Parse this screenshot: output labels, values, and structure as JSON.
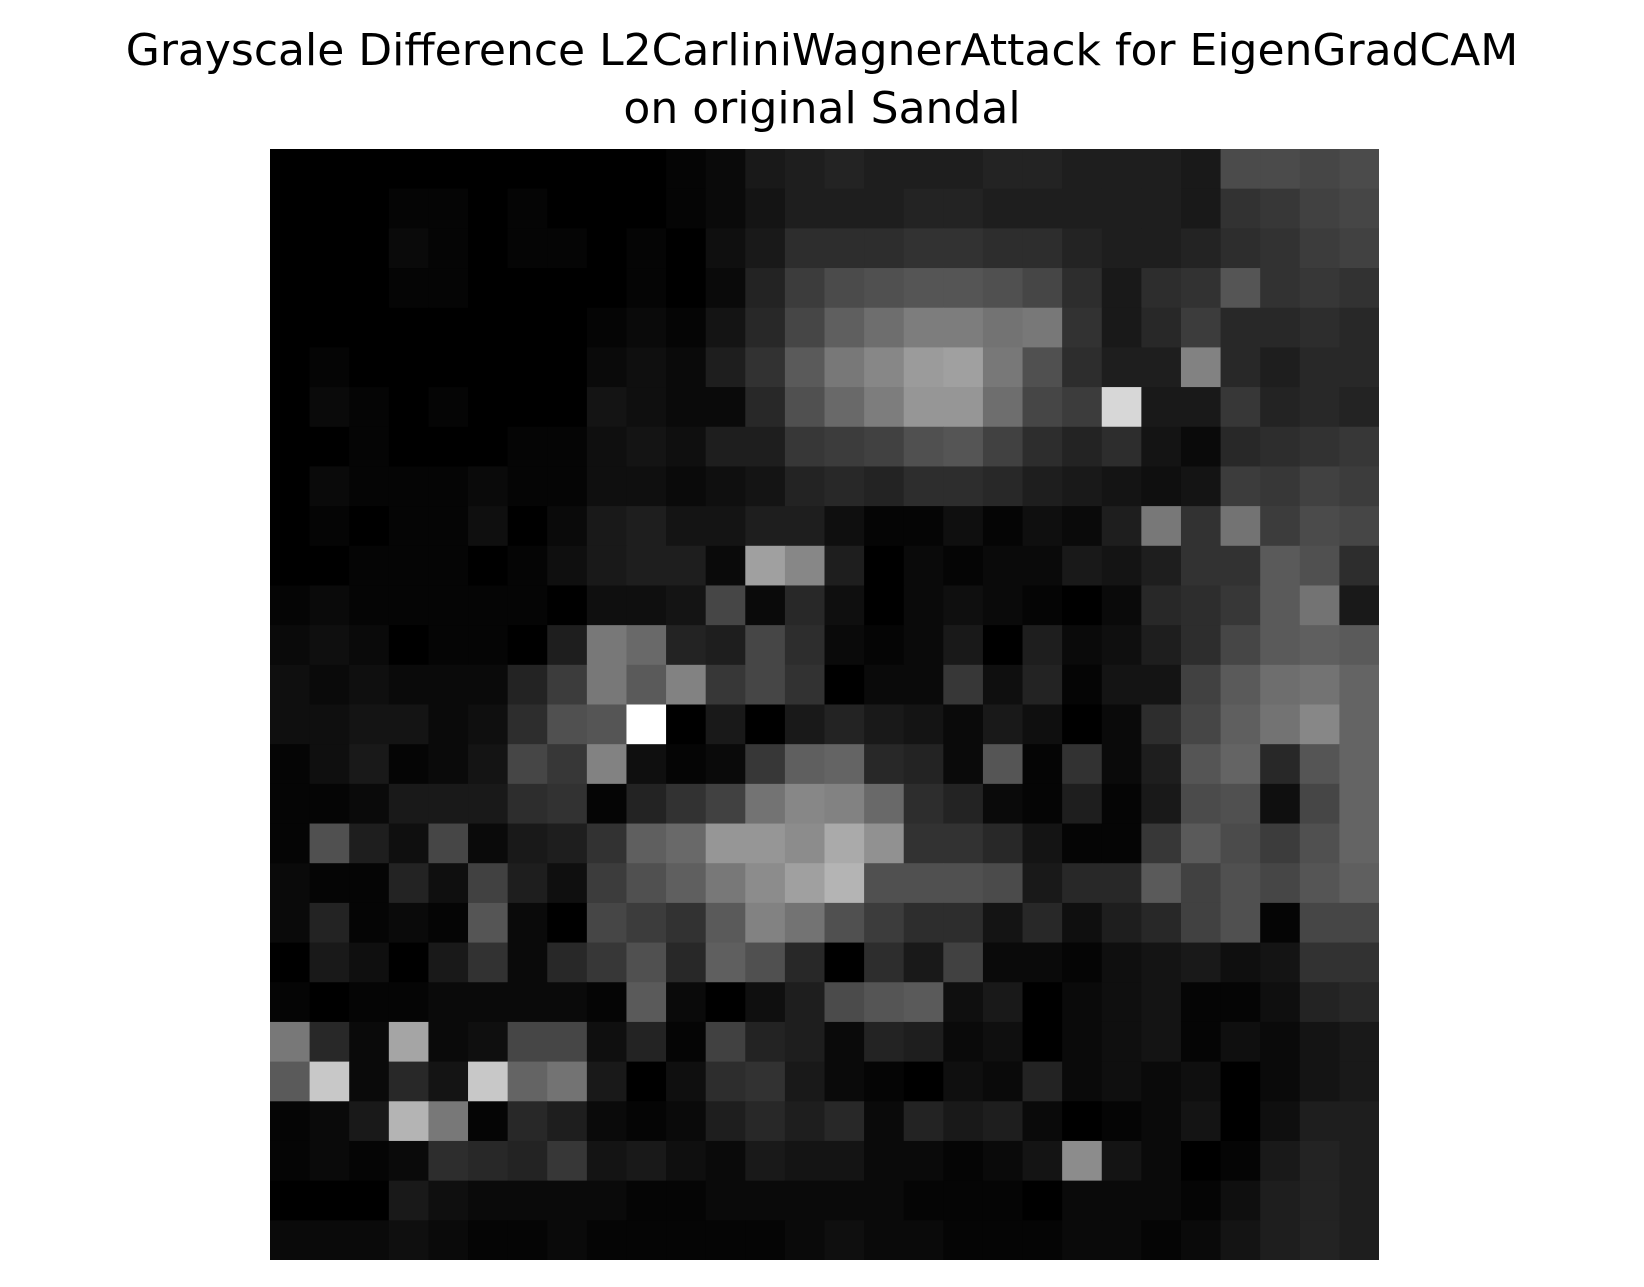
{
  "chart_data": {
    "type": "heatmap",
    "title": "Grayscale Difference L2CarliniWagnerAttack for EigenGradCAM",
    "subtitle": "on original Sandal",
    "colormap": "gray",
    "axes_visible": false,
    "rows": 28,
    "cols": 28,
    "values": [
      [
        0,
        0,
        0,
        0,
        0,
        0,
        0,
        0,
        0,
        0,
        5,
        10,
        25,
        30,
        35,
        30,
        30,
        30,
        35,
        35,
        30,
        30,
        30,
        25,
        75,
        75,
        70,
        75
      ],
      [
        0,
        0,
        0,
        5,
        5,
        0,
        5,
        0,
        0,
        0,
        5,
        10,
        20,
        30,
        30,
        30,
        35,
        35,
        30,
        30,
        30,
        30,
        30,
        25,
        50,
        55,
        65,
        70
      ],
      [
        0,
        0,
        0,
        10,
        5,
        0,
        5,
        5,
        0,
        5,
        0,
        15,
        25,
        45,
        45,
        45,
        50,
        50,
        45,
        45,
        35,
        30,
        30,
        35,
        45,
        50,
        60,
        65
      ],
      [
        0,
        0,
        0,
        5,
        5,
        0,
        0,
        0,
        0,
        5,
        0,
        10,
        35,
        60,
        75,
        80,
        85,
        85,
        80,
        70,
        45,
        25,
        45,
        50,
        85,
        50,
        55,
        50
      ],
      [
        0,
        0,
        0,
        0,
        0,
        0,
        0,
        0,
        5,
        10,
        5,
        20,
        40,
        70,
        95,
        110,
        125,
        125,
        115,
        120,
        50,
        25,
        40,
        60,
        40,
        40,
        45,
        40
      ],
      [
        0,
        5,
        0,
        0,
        0,
        0,
        0,
        0,
        10,
        15,
        10,
        30,
        50,
        90,
        120,
        135,
        155,
        160,
        120,
        80,
        45,
        30,
        30,
        130,
        40,
        30,
        40,
        40
      ],
      [
        0,
        10,
        5,
        0,
        5,
        0,
        0,
        0,
        20,
        15,
        10,
        10,
        40,
        80,
        105,
        125,
        150,
        150,
        110,
        70,
        60,
        215,
        25,
        25,
        55,
        35,
        40,
        35
      ],
      [
        0,
        0,
        5,
        0,
        0,
        0,
        5,
        5,
        15,
        20,
        15,
        30,
        30,
        55,
        60,
        65,
        80,
        85,
        65,
        45,
        35,
        45,
        20,
        10,
        40,
        45,
        50,
        55
      ],
      [
        0,
        10,
        5,
        5,
        5,
        10,
        5,
        5,
        15,
        15,
        10,
        15,
        20,
        35,
        40,
        35,
        45,
        45,
        40,
        30,
        25,
        20,
        15,
        20,
        60,
        55,
        65,
        60
      ],
      [
        0,
        5,
        0,
        5,
        5,
        15,
        0,
        10,
        25,
        30,
        20,
        20,
        30,
        30,
        15,
        5,
        5,
        15,
        5,
        15,
        10,
        30,
        120,
        50,
        115,
        60,
        75,
        70
      ],
      [
        0,
        0,
        5,
        5,
        5,
        0,
        5,
        15,
        25,
        30,
        30,
        10,
        160,
        135,
        30,
        0,
        10,
        5,
        10,
        10,
        25,
        20,
        30,
        50,
        50,
        90,
        80,
        45
      ],
      [
        5,
        10,
        5,
        5,
        5,
        5,
        5,
        0,
        15,
        15,
        20,
        70,
        10,
        40,
        15,
        0,
        10,
        15,
        10,
        5,
        0,
        10,
        40,
        45,
        55,
        90,
        115,
        25
      ],
      [
        10,
        15,
        10,
        0,
        5,
        5,
        0,
        30,
        120,
        105,
        35,
        30,
        70,
        45,
        10,
        5,
        10,
        25,
        0,
        30,
        10,
        15,
        30,
        45,
        70,
        90,
        95,
        90
      ],
      [
        15,
        10,
        15,
        10,
        10,
        10,
        35,
        60,
        120,
        90,
        130,
        55,
        70,
        50,
        0,
        10,
        10,
        55,
        15,
        35,
        5,
        20,
        20,
        65,
        90,
        110,
        115,
        100
      ],
      [
        15,
        15,
        20,
        20,
        10,
        15,
        45,
        80,
        85,
        255,
        0,
        25,
        0,
        25,
        35,
        25,
        20,
        10,
        25,
        15,
        0,
        10,
        45,
        70,
        95,
        115,
        135,
        100
      ],
      [
        5,
        15,
        25,
        5,
        10,
        20,
        70,
        55,
        130,
        15,
        5,
        10,
        55,
        95,
        100,
        40,
        35,
        10,
        85,
        5,
        50,
        10,
        30,
        85,
        100,
        40,
        85,
        100
      ],
      [
        5,
        5,
        10,
        25,
        25,
        25,
        45,
        50,
        5,
        35,
        50,
        65,
        115,
        135,
        130,
        105,
        45,
        35,
        10,
        5,
        30,
        5,
        25,
        75,
        80,
        15,
        70,
        100
      ],
      [
        5,
        80,
        30,
        15,
        70,
        10,
        25,
        30,
        50,
        95,
        105,
        150,
        150,
        140,
        170,
        145,
        50,
        50,
        40,
        20,
        5,
        5,
        55,
        90,
        75,
        60,
        80,
        100
      ],
      [
        10,
        5,
        5,
        35,
        15,
        65,
        30,
        15,
        60,
        80,
        95,
        120,
        140,
        160,
        180,
        80,
        80,
        80,
        75,
        25,
        40,
        40,
        90,
        65,
        80,
        70,
        85,
        95
      ],
      [
        10,
        35,
        5,
        10,
        5,
        85,
        10,
        0,
        70,
        60,
        50,
        90,
        130,
        115,
        80,
        60,
        45,
        45,
        20,
        40,
        15,
        30,
        40,
        65,
        80,
        5,
        70,
        70
      ],
      [
        0,
        25,
        15,
        0,
        25,
        50,
        10,
        40,
        55,
        80,
        40,
        95,
        80,
        40,
        0,
        45,
        25,
        65,
        10,
        10,
        5,
        15,
        20,
        25,
        15,
        20,
        50,
        50
      ],
      [
        5,
        0,
        5,
        5,
        10,
        10,
        10,
        10,
        5,
        90,
        10,
        0,
        15,
        30,
        75,
        85,
        90,
        15,
        25,
        0,
        10,
        15,
        20,
        5,
        5,
        15,
        35,
        40
      ],
      [
        120,
        40,
        10,
        165,
        10,
        15,
        70,
        70,
        15,
        35,
        5,
        65,
        35,
        30,
        10,
        35,
        30,
        10,
        15,
        0,
        10,
        15,
        20,
        5,
        15,
        10,
        20,
        25
      ],
      [
        90,
        200,
        10,
        40,
        20,
        200,
        100,
        115,
        25,
        0,
        15,
        45,
        50,
        25,
        10,
        5,
        0,
        15,
        10,
        35,
        10,
        15,
        10,
        15,
        0,
        10,
        20,
        25
      ],
      [
        5,
        10,
        25,
        180,
        120,
        5,
        40,
        30,
        10,
        5,
        10,
        30,
        40,
        30,
        40,
        10,
        35,
        25,
        30,
        10,
        0,
        5,
        10,
        20,
        0,
        15,
        30,
        30
      ],
      [
        5,
        10,
        5,
        10,
        45,
        40,
        35,
        55,
        20,
        25,
        15,
        10,
        25,
        20,
        20,
        10,
        10,
        5,
        10,
        20,
        140,
        20,
        10,
        0,
        5,
        25,
        35,
        30
      ],
      [
        0,
        0,
        0,
        25,
        15,
        10,
        10,
        10,
        10,
        5,
        5,
        10,
        10,
        10,
        10,
        10,
        5,
        5,
        5,
        0,
        10,
        10,
        10,
        5,
        15,
        30,
        35,
        30
      ],
      [
        10,
        10,
        10,
        15,
        10,
        5,
        5,
        10,
        5,
        5,
        5,
        5,
        5,
        10,
        15,
        10,
        10,
        5,
        5,
        5,
        10,
        10,
        5,
        10,
        20,
        30,
        35,
        30
      ]
    ]
  }
}
